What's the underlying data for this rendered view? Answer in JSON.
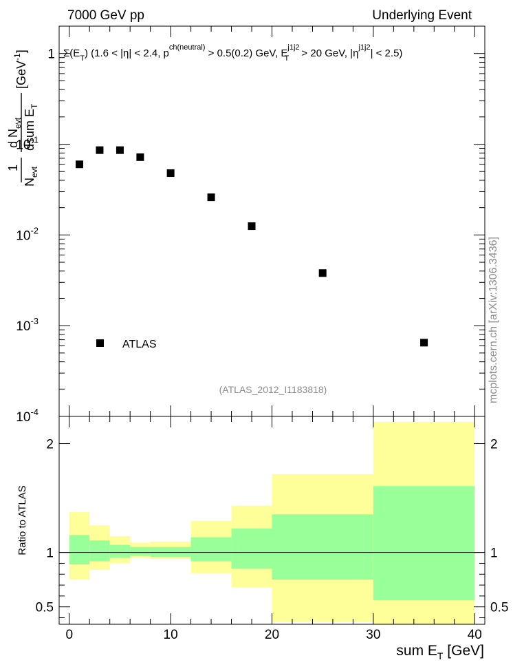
{
  "header": {
    "left": "7000 GeV pp",
    "right": "Underlying Event"
  },
  "side_label": "mcplots.cern.ch [arXiv:1306.3436]",
  "analysis_tag": "(ATLAS_2012_I1183818)",
  "chart_data": [
    {
      "type": "scatter",
      "panel": "main",
      "title": "Σ(E_T) (1.6 < |η| < 2.4, p^ch(neutral) > 0.5(0.2) GeV, E_T^j1j2 > 20 GeV, |η^j1j2| < 2.5)",
      "ylabel": "1/N_evt dN_evt/dsum E_T [GeV^-1]",
      "yscale": "log",
      "ylim": [
        0.0001,
        2
      ],
      "xlim": [
        -1,
        41
      ],
      "y_tick_labels": [
        "1",
        "10^-1",
        "10^-2",
        "10^-3",
        "10^-4"
      ],
      "legend": "bottom-left",
      "series": [
        {
          "name": "ATLAS",
          "color": "#000000",
          "marker": "square",
          "x": [
            1,
            3,
            5,
            7,
            10,
            14,
            18,
            25,
            35
          ],
          "y": [
            0.06,
            0.086,
            0.086,
            0.072,
            0.048,
            0.026,
            0.0125,
            0.0038,
            0.00065
          ]
        }
      ]
    },
    {
      "type": "area",
      "panel": "ratio",
      "xlabel": "sum E_T [GeV]",
      "ylabel": "Ratio to ATLAS",
      "xlim": [
        -1,
        41
      ],
      "ylim": [
        0.34,
        2.25
      ],
      "x_ticks": [
        0,
        10,
        20,
        30,
        40
      ],
      "y_tick_labels": [
        "0.5",
        "1",
        "2"
      ],
      "bins": [
        {
          "lo": 0,
          "hi": 2,
          "inner_lo": 0.89,
          "inner_hi": 1.16,
          "outer_lo": 0.75,
          "outer_hi": 1.37
        },
        {
          "lo": 2,
          "hi": 4,
          "inner_lo": 0.92,
          "inner_hi": 1.11,
          "outer_lo": 0.84,
          "outer_hi": 1.25
        },
        {
          "lo": 4,
          "hi": 6,
          "inner_lo": 0.95,
          "inner_hi": 1.07,
          "outer_lo": 0.9,
          "outer_hi": 1.15
        },
        {
          "lo": 6,
          "hi": 8,
          "inner_lo": 0.97,
          "inner_hi": 1.05,
          "outer_lo": 0.95,
          "outer_hi": 1.09
        },
        {
          "lo": 8,
          "hi": 12,
          "inner_lo": 0.96,
          "inner_hi": 1.05,
          "outer_lo": 0.94,
          "outer_hi": 1.1
        },
        {
          "lo": 12,
          "hi": 16,
          "inner_lo": 0.92,
          "inner_hi": 1.14,
          "outer_lo": 0.81,
          "outer_hi": 1.29
        },
        {
          "lo": 16,
          "hi": 20,
          "inner_lo": 0.85,
          "inner_hi": 1.22,
          "outer_lo": 0.68,
          "outer_hi": 1.43
        },
        {
          "lo": 20,
          "hi": 30,
          "inner_lo": 0.75,
          "inner_hi": 1.35,
          "outer_lo": 0.36,
          "outer_hi": 1.72
        },
        {
          "lo": 30,
          "hi": 40,
          "inner_lo": 0.56,
          "inner_hi": 1.61,
          "outer_lo": 0.34,
          "outer_hi": 2.2
        }
      ],
      "inner_color": "#99ff99",
      "outer_color": "#ffff99",
      "reference_line": 1
    }
  ]
}
